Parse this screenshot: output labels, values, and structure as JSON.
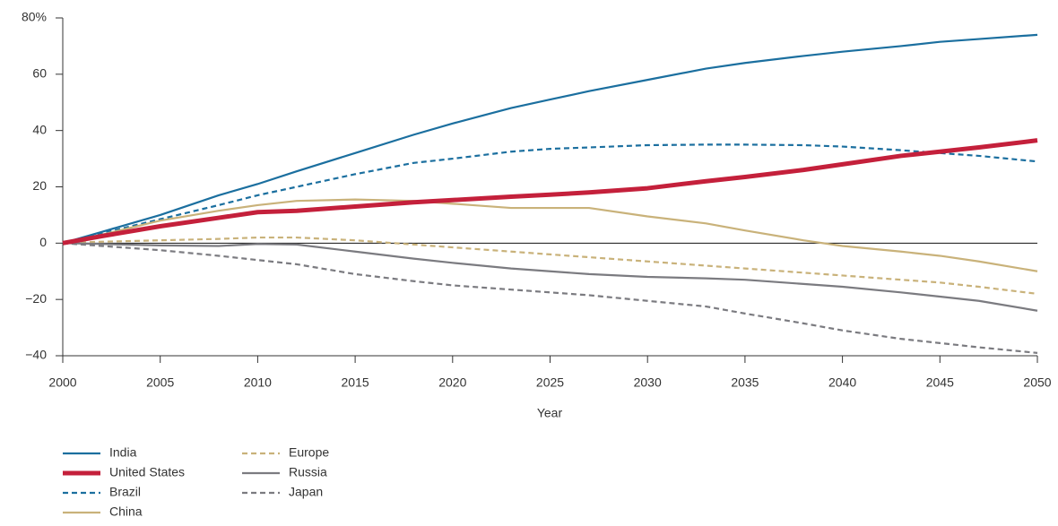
{
  "chart_data": {
    "type": "line",
    "x_label": "Year",
    "x": [
      2000,
      2002,
      2005,
      2008,
      2010,
      2012,
      2015,
      2018,
      2020,
      2023,
      2025,
      2027,
      2030,
      2033,
      2035,
      2038,
      2040,
      2043,
      2045,
      2047,
      2050
    ],
    "series": [
      {
        "name": "India",
        "color": "#1b6f9f",
        "style": "solid",
        "width": 2.2,
        "values": [
          0,
          4,
          10,
          17,
          21,
          25.5,
          32,
          38.5,
          42.5,
          48,
          51,
          54,
          58,
          62,
          64,
          66.5,
          68,
          70,
          71.5,
          72.5,
          74
        ]
      },
      {
        "name": "United States",
        "color": "#c4203b",
        "style": "solid",
        "width": 5,
        "values": [
          0,
          2.5,
          6,
          9,
          11,
          11.5,
          13,
          14.5,
          15.3,
          16.5,
          17.2,
          18,
          19.5,
          22,
          23.5,
          26,
          28,
          31,
          32.5,
          34,
          36.5
        ]
      },
      {
        "name": "Brazil",
        "color": "#1b6f9f",
        "style": "dashed",
        "width": 2.2,
        "values": [
          0,
          3.5,
          8.5,
          13.5,
          17,
          20,
          24.5,
          28.5,
          30,
          32.5,
          33.5,
          34,
          34.8,
          35,
          35,
          34.8,
          34.3,
          33,
          32,
          31,
          29
        ]
      },
      {
        "name": "China",
        "color": "#c9b27a",
        "style": "solid",
        "width": 2.2,
        "values": [
          0,
          3,
          8,
          11.5,
          13.5,
          15,
          15.5,
          15,
          14,
          12.5,
          12.5,
          12.5,
          9.5,
          7,
          4.5,
          1,
          -1,
          -3,
          -4.5,
          -6.5,
          -10
        ]
      },
      {
        "name": "Europe",
        "color": "#c9b27a",
        "style": "dashed",
        "width": 2.2,
        "values": [
          0,
          0.5,
          1,
          1.5,
          2,
          2,
          1,
          -0.5,
          -1.5,
          -3,
          -4,
          -5,
          -6.5,
          -8,
          -9,
          -10.5,
          -11.5,
          -13,
          -14,
          -15.5,
          -18
        ]
      },
      {
        "name": "Russia",
        "color": "#7b7b80",
        "style": "solid",
        "width": 2.2,
        "values": [
          0,
          -0.3,
          -0.8,
          -1,
          -0.3,
          -0.5,
          -3,
          -5.5,
          -7,
          -9,
          -10,
          -11,
          -12,
          -12.5,
          -13,
          -14.5,
          -15.5,
          -17.5,
          -19,
          -20.5,
          -24
        ]
      },
      {
        "name": "Japan",
        "color": "#7b7b80",
        "style": "dashed",
        "width": 2.2,
        "values": [
          0,
          -1,
          -2.5,
          -4.5,
          -6,
          -7.5,
          -11,
          -13.5,
          -15,
          -16.5,
          -17.5,
          -18.5,
          -20.5,
          -22.5,
          -25,
          -28.5,
          -31,
          -34,
          -35.5,
          -37,
          -39
        ]
      }
    ],
    "xlim": [
      2000,
      2050
    ],
    "xticks": [
      2000,
      2005,
      2010,
      2015,
      2020,
      2025,
      2030,
      2035,
      2040,
      2045,
      2050
    ],
    "ylim": [
      -40,
      80
    ],
    "yticks": [
      {
        "value": -40,
        "label": "−40"
      },
      {
        "value": -20,
        "label": "−20"
      },
      0,
      20,
      40,
      60,
      {
        "value": 80,
        "label": "80%"
      }
    ],
    "legend": "bottom-left"
  }
}
